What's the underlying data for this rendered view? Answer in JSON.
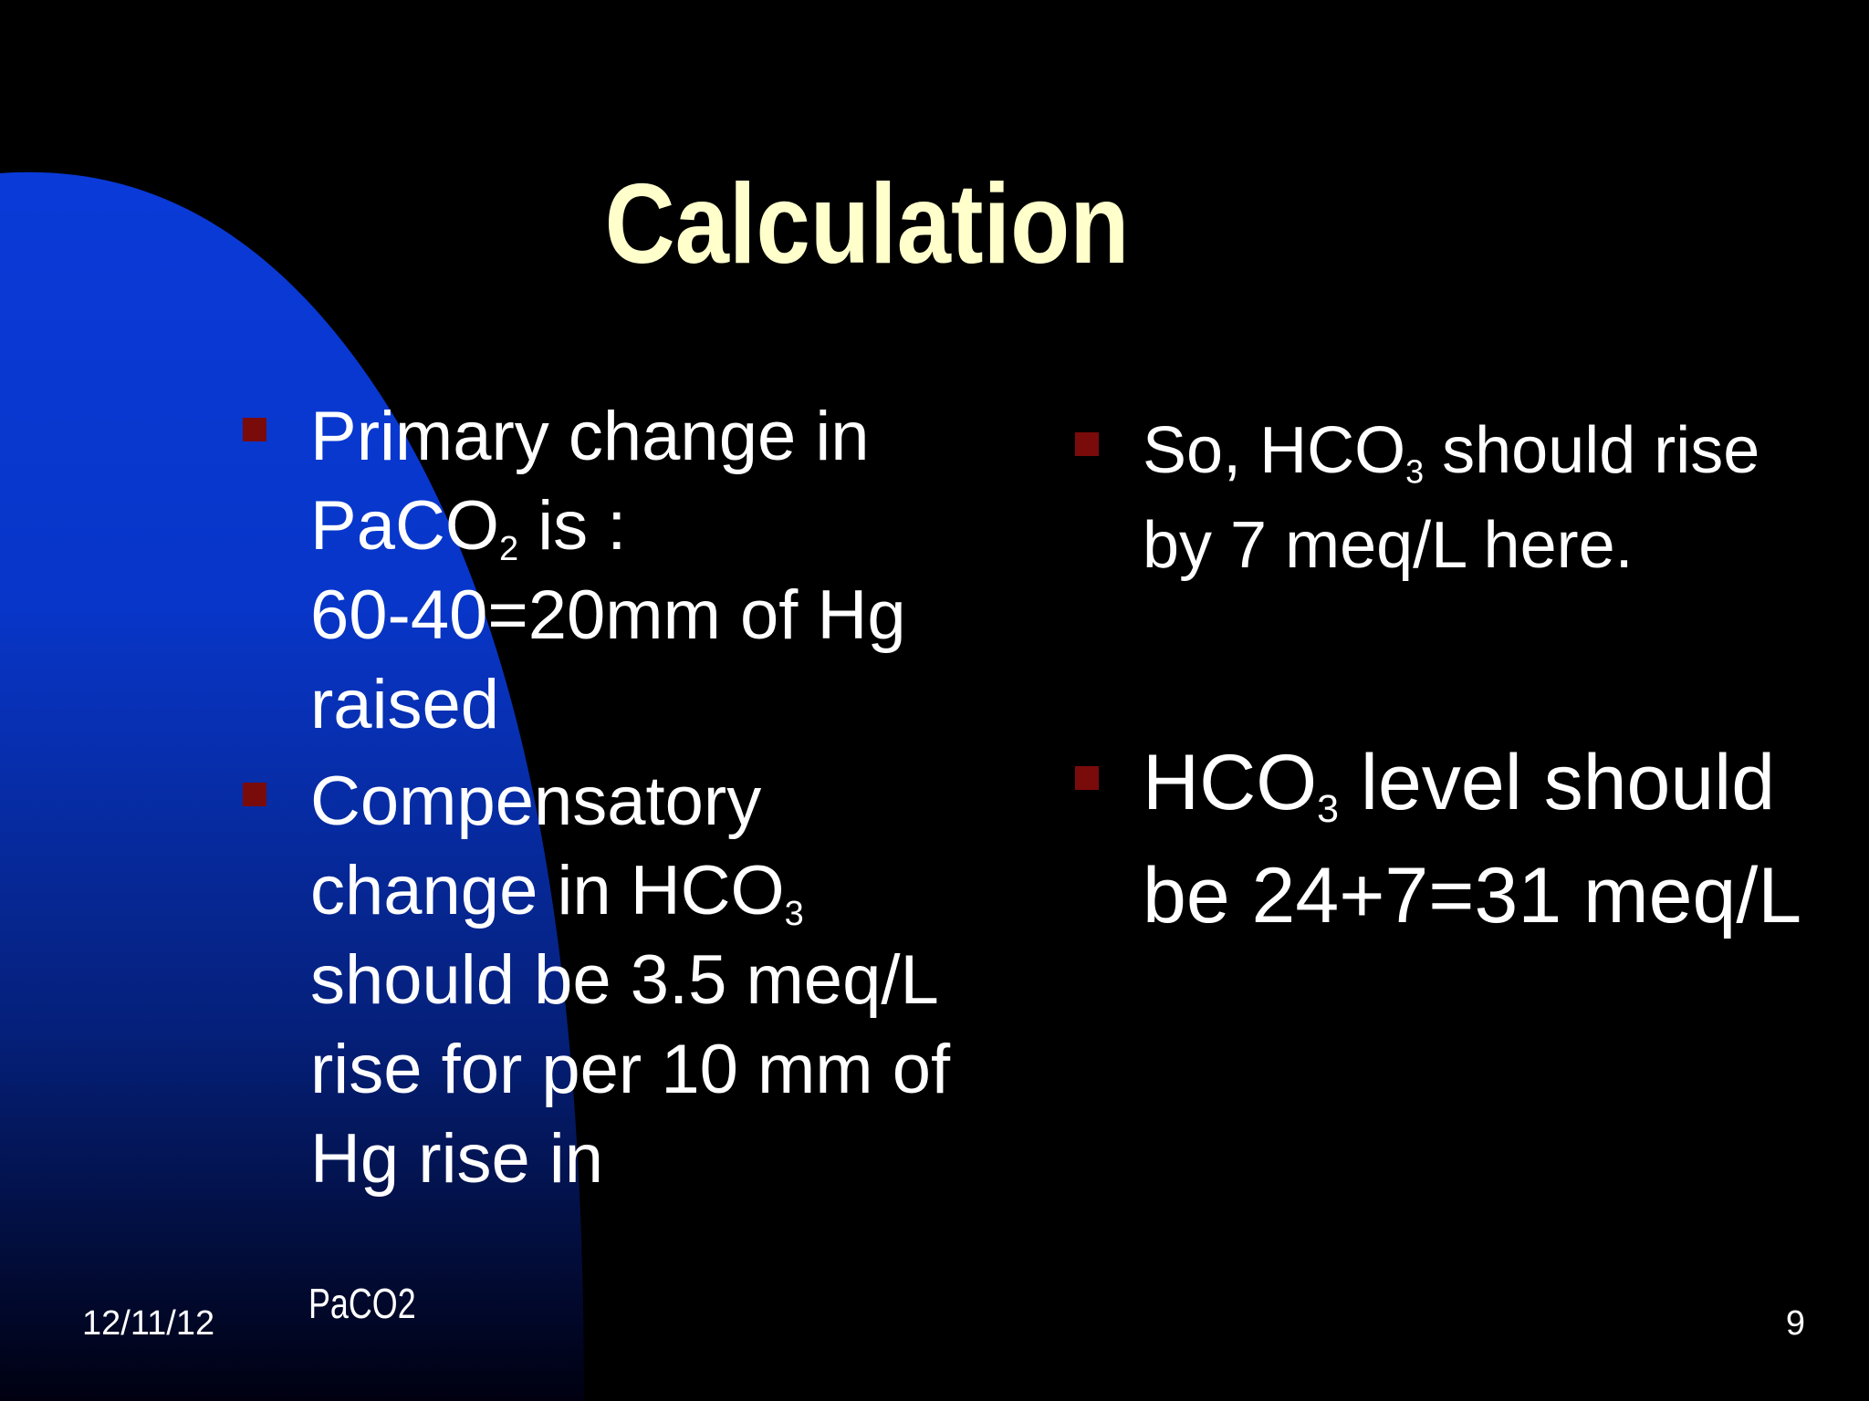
{
  "slide": {
    "title": "Calculation",
    "left_column": [
      {
        "text_1": "Primary change  in PaCO",
        "sub_1": "2",
        "text_2": " is :",
        "line_2": "60-40=20mm of Hg raised"
      },
      {
        "text_1": "Compensatory change in HCO",
        "sub_1": "3",
        "line_2": "should be 3.5 meq/L rise for per 10 mm of Hg rise in"
      }
    ],
    "right_column": [
      {
        "text_1": "So, HCO",
        "sub_1": "3",
        "text_2": " should rise by 7 meq/L here."
      },
      {
        "text_1": "HCO",
        "sub_1": "3",
        "text_2": " level should be 24+7=31 meq/L"
      }
    ],
    "colors": {
      "background": "#000000",
      "title": "#ffffcc",
      "text": "#ffffff",
      "bullet": "#7a0b0b",
      "accent_shape": "#0a3ad8"
    }
  },
  "footer": {
    "date": "12/11/12",
    "center": "PaCO2",
    "page_number": "9"
  }
}
